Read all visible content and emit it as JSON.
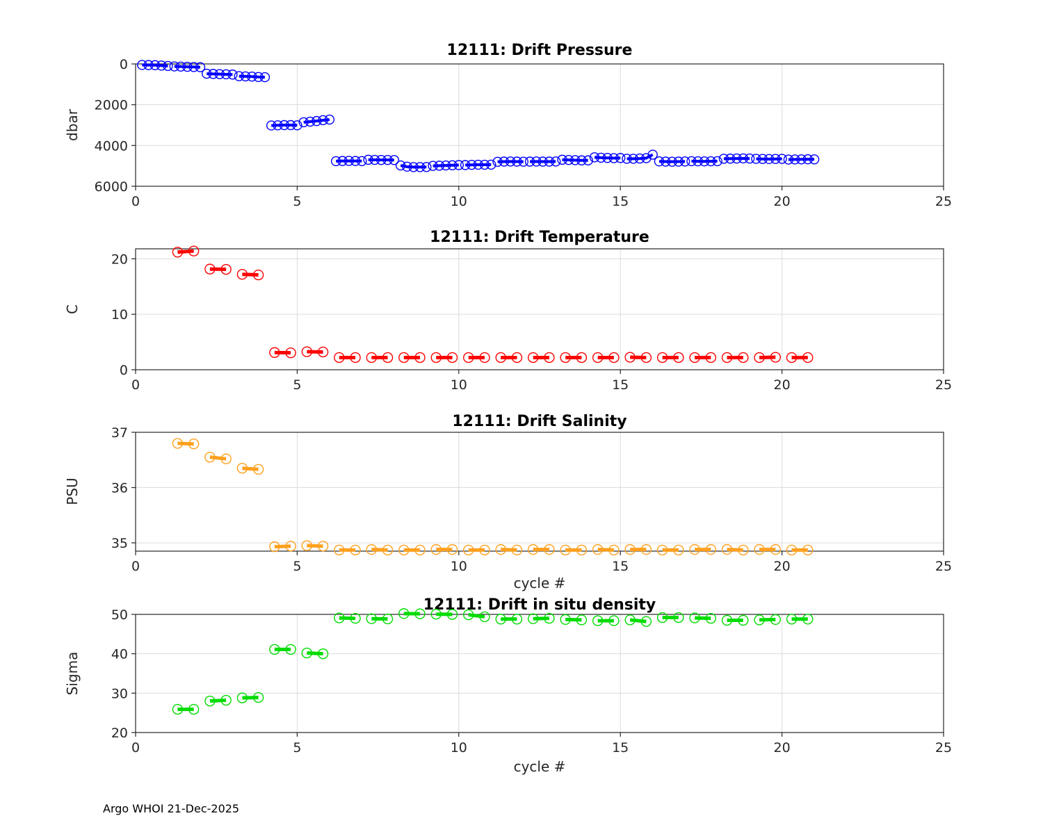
{
  "figure": {
    "footer": "Argo WHOI 21-Dec-2025",
    "float_id": "12111"
  },
  "colors": {
    "pressure_series": "#0000FF",
    "temperature_series": "#FF0000",
    "salinity_series": "#FFA01E",
    "density_series": "#00DC00",
    "axis": "#262626",
    "grid": "#DCDCDC",
    "title_text": "#000000"
  },
  "chart_data": [
    {
      "type": "scatter",
      "title": "12111: Drift Pressure",
      "ylabel": "dbar",
      "xlabel": "",
      "xlim": [
        0,
        25
      ],
      "xticks": [
        0,
        5,
        10,
        15,
        20,
        25
      ],
      "ylim": [
        0,
        6000
      ],
      "yticks": [
        0,
        2000,
        4000,
        6000
      ],
      "y_reversed": true,
      "grid": true,
      "legend": "none",
      "color": "#0000FF",
      "marker": "open-circle",
      "x_offsets": [
        -0.8,
        -0.6,
        -0.4,
        -0.2,
        0.0
      ],
      "groups": [
        {
          "cycle": 1,
          "y": [
            50,
            55,
            60,
            80,
            100
          ]
        },
        {
          "cycle": 2,
          "y": [
            120,
            130,
            140,
            150,
            160
          ]
        },
        {
          "cycle": 3,
          "y": [
            480,
            490,
            500,
            510,
            520
          ]
        },
        {
          "cycle": 4,
          "y": [
            600,
            610,
            620,
            640,
            650
          ]
        },
        {
          "cycle": 5,
          "y": [
            3020,
            3010,
            3000,
            3000,
            3010
          ]
        },
        {
          "cycle": 6,
          "y": [
            2860,
            2830,
            2800,
            2760,
            2730
          ]
        },
        {
          "cycle": 7,
          "y": [
            4770,
            4760,
            4755,
            4760,
            4765
          ]
        },
        {
          "cycle": 8,
          "y": [
            4700,
            4705,
            4710,
            4710,
            4715
          ]
        },
        {
          "cycle": 9,
          "y": [
            4980,
            5040,
            5060,
            5060,
            5055
          ]
        },
        {
          "cycle": 10,
          "y": [
            5000,
            4990,
            4980,
            4970,
            4960
          ]
        },
        {
          "cycle": 11,
          "y": [
            4960,
            4950,
            4945,
            4945,
            4940
          ]
        },
        {
          "cycle": 12,
          "y": [
            4800,
            4790,
            4785,
            4790,
            4795
          ]
        },
        {
          "cycle": 13,
          "y": [
            4790,
            4785,
            4790,
            4790,
            4785
          ]
        },
        {
          "cycle": 14,
          "y": [
            4700,
            4710,
            4720,
            4730,
            4730
          ]
        },
        {
          "cycle": 15,
          "y": [
            4580,
            4600,
            4610,
            4620,
            4615
          ]
        },
        {
          "cycle": 16,
          "y": [
            4650,
            4650,
            4640,
            4620,
            4450
          ]
        },
        {
          "cycle": 17,
          "y": [
            4780,
            4790,
            4795,
            4790,
            4785
          ]
        },
        {
          "cycle": 18,
          "y": [
            4770,
            4775,
            4780,
            4775,
            4770
          ]
        },
        {
          "cycle": 19,
          "y": [
            4650,
            4645,
            4640,
            4635,
            4640
          ]
        },
        {
          "cycle": 20,
          "y": [
            4655,
            4660,
            4665,
            4660,
            4655
          ]
        },
        {
          "cycle": 21,
          "y": [
            4690,
            4685,
            4680,
            4675,
            4680
          ]
        }
      ]
    },
    {
      "type": "scatter",
      "title": "12111: Drift Temperature",
      "ylabel": "C",
      "xlabel": "",
      "xlim": [
        0,
        25
      ],
      "xticks": [
        0,
        5,
        10,
        15,
        20,
        25
      ],
      "ylim": [
        0,
        21.8
      ],
      "yticks": [
        0,
        10,
        20
      ],
      "y_reversed": false,
      "grid": true,
      "legend": "none",
      "color": "#FF0000",
      "marker": "open-circle",
      "x_offsets": [
        0.3,
        0.8
      ],
      "groups": [
        {
          "cycle": 1,
          "y": [
            21.2,
            21.4
          ]
        },
        {
          "cycle": 2,
          "y": [
            18.15,
            18.1
          ]
        },
        {
          "cycle": 3,
          "y": [
            17.2,
            17.1
          ]
        },
        {
          "cycle": 4,
          "y": [
            3.1,
            3.05
          ]
        },
        {
          "cycle": 5,
          "y": [
            3.25,
            3.2
          ]
        },
        {
          "cycle": 6,
          "y": [
            2.2,
            2.2
          ]
        },
        {
          "cycle": 7,
          "y": [
            2.2,
            2.2
          ]
        },
        {
          "cycle": 8,
          "y": [
            2.2,
            2.2
          ]
        },
        {
          "cycle": 9,
          "y": [
            2.2,
            2.2
          ]
        },
        {
          "cycle": 10,
          "y": [
            2.2,
            2.2
          ]
        },
        {
          "cycle": 11,
          "y": [
            2.2,
            2.2
          ]
        },
        {
          "cycle": 12,
          "y": [
            2.2,
            2.2
          ]
        },
        {
          "cycle": 13,
          "y": [
            2.2,
            2.2
          ]
        },
        {
          "cycle": 14,
          "y": [
            2.2,
            2.2
          ]
        },
        {
          "cycle": 15,
          "y": [
            2.25,
            2.2
          ]
        },
        {
          "cycle": 16,
          "y": [
            2.2,
            2.2
          ]
        },
        {
          "cycle": 17,
          "y": [
            2.2,
            2.2
          ]
        },
        {
          "cycle": 18,
          "y": [
            2.2,
            2.2
          ]
        },
        {
          "cycle": 19,
          "y": [
            2.2,
            2.25
          ]
        },
        {
          "cycle": 20,
          "y": [
            2.2,
            2.2
          ]
        }
      ]
    },
    {
      "type": "scatter",
      "title": "12111: Drift Salinity",
      "ylabel": "PSU",
      "xlabel": "cycle #",
      "xlim": [
        0,
        25
      ],
      "xticks": [
        0,
        5,
        10,
        15,
        20,
        25
      ],
      "ylim": [
        34.85,
        37
      ],
      "yticks": [
        35,
        36,
        37
      ],
      "y_reversed": false,
      "grid": true,
      "legend": "none",
      "color": "#FFA01E",
      "marker": "open-circle",
      "x_offsets": [
        0.3,
        0.8
      ],
      "groups": [
        {
          "cycle": 1,
          "y": [
            36.8,
            36.79
          ]
        },
        {
          "cycle": 2,
          "y": [
            36.55,
            36.52
          ]
        },
        {
          "cycle": 3,
          "y": [
            36.35,
            36.33
          ]
        },
        {
          "cycle": 4,
          "y": [
            34.93,
            34.94
          ]
        },
        {
          "cycle": 5,
          "y": [
            34.95,
            34.94
          ]
        },
        {
          "cycle": 6,
          "y": [
            34.87,
            34.87
          ]
        },
        {
          "cycle": 7,
          "y": [
            34.88,
            34.87
          ]
        },
        {
          "cycle": 8,
          "y": [
            34.87,
            34.87
          ]
        },
        {
          "cycle": 9,
          "y": [
            34.88,
            34.88
          ]
        },
        {
          "cycle": 10,
          "y": [
            34.87,
            34.87
          ]
        },
        {
          "cycle": 11,
          "y": [
            34.88,
            34.87
          ]
        },
        {
          "cycle": 12,
          "y": [
            34.88,
            34.88
          ]
        },
        {
          "cycle": 13,
          "y": [
            34.87,
            34.87
          ]
        },
        {
          "cycle": 14,
          "y": [
            34.88,
            34.87
          ]
        },
        {
          "cycle": 15,
          "y": [
            34.88,
            34.88
          ]
        },
        {
          "cycle": 16,
          "y": [
            34.87,
            34.87
          ]
        },
        {
          "cycle": 17,
          "y": [
            34.88,
            34.88
          ]
        },
        {
          "cycle": 18,
          "y": [
            34.88,
            34.87
          ]
        },
        {
          "cycle": 19,
          "y": [
            34.88,
            34.88
          ]
        },
        {
          "cycle": 20,
          "y": [
            34.87,
            34.87
          ]
        }
      ]
    },
    {
      "type": "scatter",
      "title": "12111: Drift in situ density",
      "ylabel": "Sigma",
      "xlabel": "cycle #",
      "xlim": [
        0,
        25
      ],
      "xticks": [
        0,
        5,
        10,
        15,
        20,
        25
      ],
      "ylim": [
        20,
        50
      ],
      "yticks": [
        20,
        30,
        40,
        50
      ],
      "y_reversed": false,
      "grid": true,
      "legend": "none",
      "color": "#00DC00",
      "marker": "open-circle",
      "x_offsets": [
        0.3,
        0.8
      ],
      "groups": [
        {
          "cycle": 1,
          "y": [
            25.9,
            25.9
          ]
        },
        {
          "cycle": 2,
          "y": [
            28.0,
            28.2
          ]
        },
        {
          "cycle": 3,
          "y": [
            28.8,
            28.9
          ]
        },
        {
          "cycle": 4,
          "y": [
            41.1,
            41.1
          ]
        },
        {
          "cycle": 5,
          "y": [
            40.2,
            40.0
          ]
        },
        {
          "cycle": 6,
          "y": [
            49.1,
            49.0
          ]
        },
        {
          "cycle": 7,
          "y": [
            48.9,
            48.85
          ]
        },
        {
          "cycle": 8,
          "y": [
            50.2,
            50.15
          ]
        },
        {
          "cycle": 9,
          "y": [
            50.05,
            50.0
          ]
        },
        {
          "cycle": 10,
          "y": [
            49.9,
            49.4
          ]
        },
        {
          "cycle": 11,
          "y": [
            48.8,
            48.8
          ]
        },
        {
          "cycle": 12,
          "y": [
            48.9,
            49.0
          ]
        },
        {
          "cycle": 13,
          "y": [
            48.7,
            48.6
          ]
        },
        {
          "cycle": 14,
          "y": [
            48.4,
            48.4
          ]
        },
        {
          "cycle": 15,
          "y": [
            48.6,
            48.2
          ]
        },
        {
          "cycle": 16,
          "y": [
            49.2,
            49.2
          ]
        },
        {
          "cycle": 17,
          "y": [
            49.1,
            49.0
          ]
        },
        {
          "cycle": 18,
          "y": [
            48.5,
            48.5
          ]
        },
        {
          "cycle": 19,
          "y": [
            48.6,
            48.7
          ]
        },
        {
          "cycle": 20,
          "y": [
            48.8,
            48.8
          ]
        }
      ]
    }
  ]
}
